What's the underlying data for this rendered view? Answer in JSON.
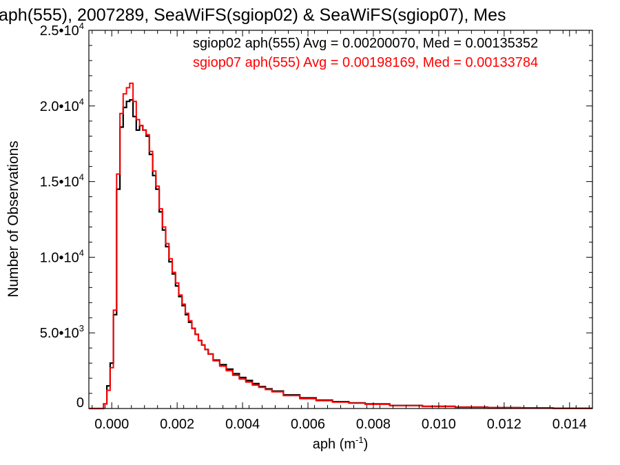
{
  "chart_data": {
    "type": "line",
    "title": "aph(555), 2007289, SeaWiFS(sgiop02) & SeaWiFS(sgiop07), Mes",
    "xlabel": "aph (m⁻¹)",
    "ylabel": "Number of Observations",
    "xlim": [
      -0.0007,
      0.0147
    ],
    "ylim": [
      0,
      25000
    ],
    "x_ticks": [
      {
        "value": 0.0,
        "label": "0.000"
      },
      {
        "value": 0.002,
        "label": "0.002"
      },
      {
        "value": 0.004,
        "label": "0.004"
      },
      {
        "value": 0.006,
        "label": "0.006"
      },
      {
        "value": 0.008,
        "label": "0.008"
      },
      {
        "value": 0.01,
        "label": "0.010"
      },
      {
        "value": 0.012,
        "label": "0.012"
      },
      {
        "value": 0.014,
        "label": "0.014"
      }
    ],
    "y_ticks": [
      {
        "value": 0,
        "label": "0"
      },
      {
        "value": 5000,
        "label": "5.0•10",
        "exp": "3"
      },
      {
        "value": 10000,
        "label": "1.0•10",
        "exp": "4"
      },
      {
        "value": 15000,
        "label": "1.5•10",
        "exp": "4"
      },
      {
        "value": 20000,
        "label": "2.0•10",
        "exp": "4"
      },
      {
        "value": 25000,
        "label": "2.5•10",
        "exp": "4"
      }
    ],
    "grid": false,
    "legend_position": "top-right",
    "series": [
      {
        "name": "sgiop02 aph(555) Avg = 0.00200070, Med = 0.00135352",
        "color": "#000000",
        "x": [
          -0.0002,
          -0.0001,
          0.0,
          0.0001,
          0.0002,
          0.0003,
          0.0004,
          0.0005,
          0.0006,
          0.0007,
          0.0008,
          0.0009,
          0.001,
          0.0011,
          0.0012,
          0.0013,
          0.0014,
          0.0015,
          0.0016,
          0.0017,
          0.0018,
          0.0019,
          0.002,
          0.0021,
          0.0022,
          0.0023,
          0.0024,
          0.0025,
          0.0026,
          0.0027,
          0.0028,
          0.0029,
          0.003,
          0.0032,
          0.0034,
          0.0036,
          0.0038,
          0.004,
          0.0042,
          0.0044,
          0.0046,
          0.0048,
          0.005,
          0.0055,
          0.006,
          0.0065,
          0.007,
          0.0075,
          0.008,
          0.009,
          0.01,
          0.011,
          0.012,
          0.013,
          0.014
        ],
        "y": [
          300,
          1500,
          3000,
          6200,
          14500,
          18600,
          19900,
          20300,
          20400,
          19300,
          18400,
          18700,
          18400,
          18000,
          16800,
          15400,
          14500,
          13000,
          11800,
          10700,
          9700,
          8900,
          8100,
          7400,
          6800,
          6200,
          5700,
          5300,
          4900,
          4500,
          4200,
          3900,
          3600,
          3200,
          2900,
          2600,
          2300,
          2050,
          1850,
          1650,
          1450,
          1300,
          1150,
          900,
          700,
          550,
          450,
          370,
          300,
          200,
          140,
          90,
          60,
          40,
          20
        ]
      },
      {
        "name": "sgiop07 aph(555) Avg = 0.00198169, Med = 0.00133784",
        "color": "#ff0000",
        "x": [
          -0.0002,
          -0.0001,
          0.0,
          0.0001,
          0.0002,
          0.0003,
          0.0004,
          0.0005,
          0.0006,
          0.0007,
          0.0008,
          0.0009,
          0.001,
          0.0011,
          0.0012,
          0.0013,
          0.0014,
          0.0015,
          0.0016,
          0.0017,
          0.0018,
          0.0019,
          0.002,
          0.0021,
          0.0022,
          0.0023,
          0.0024,
          0.0025,
          0.0026,
          0.0027,
          0.0028,
          0.0029,
          0.003,
          0.0032,
          0.0034,
          0.0036,
          0.0038,
          0.004,
          0.0042,
          0.0044,
          0.0046,
          0.0048,
          0.005,
          0.0055,
          0.006,
          0.0065,
          0.007,
          0.0075,
          0.008,
          0.009,
          0.01,
          0.011,
          0.012,
          0.013,
          0.014
        ],
        "y": [
          300,
          1200,
          2700,
          6500,
          15500,
          19500,
          20800,
          21200,
          21500,
          20300,
          19100,
          18700,
          18400,
          18100,
          17000,
          15700,
          14700,
          13200,
          12000,
          10900,
          9900,
          9000,
          8300,
          7500,
          6900,
          6300,
          5800,
          5300,
          4900,
          4500,
          4200,
          3900,
          3600,
          3150,
          2800,
          2500,
          2200,
          1950,
          1750,
          1550,
          1400,
          1250,
          1100,
          850,
          650,
          520,
          420,
          350,
          280,
          190,
          130,
          85,
          55,
          35,
          18
        ]
      }
    ]
  }
}
